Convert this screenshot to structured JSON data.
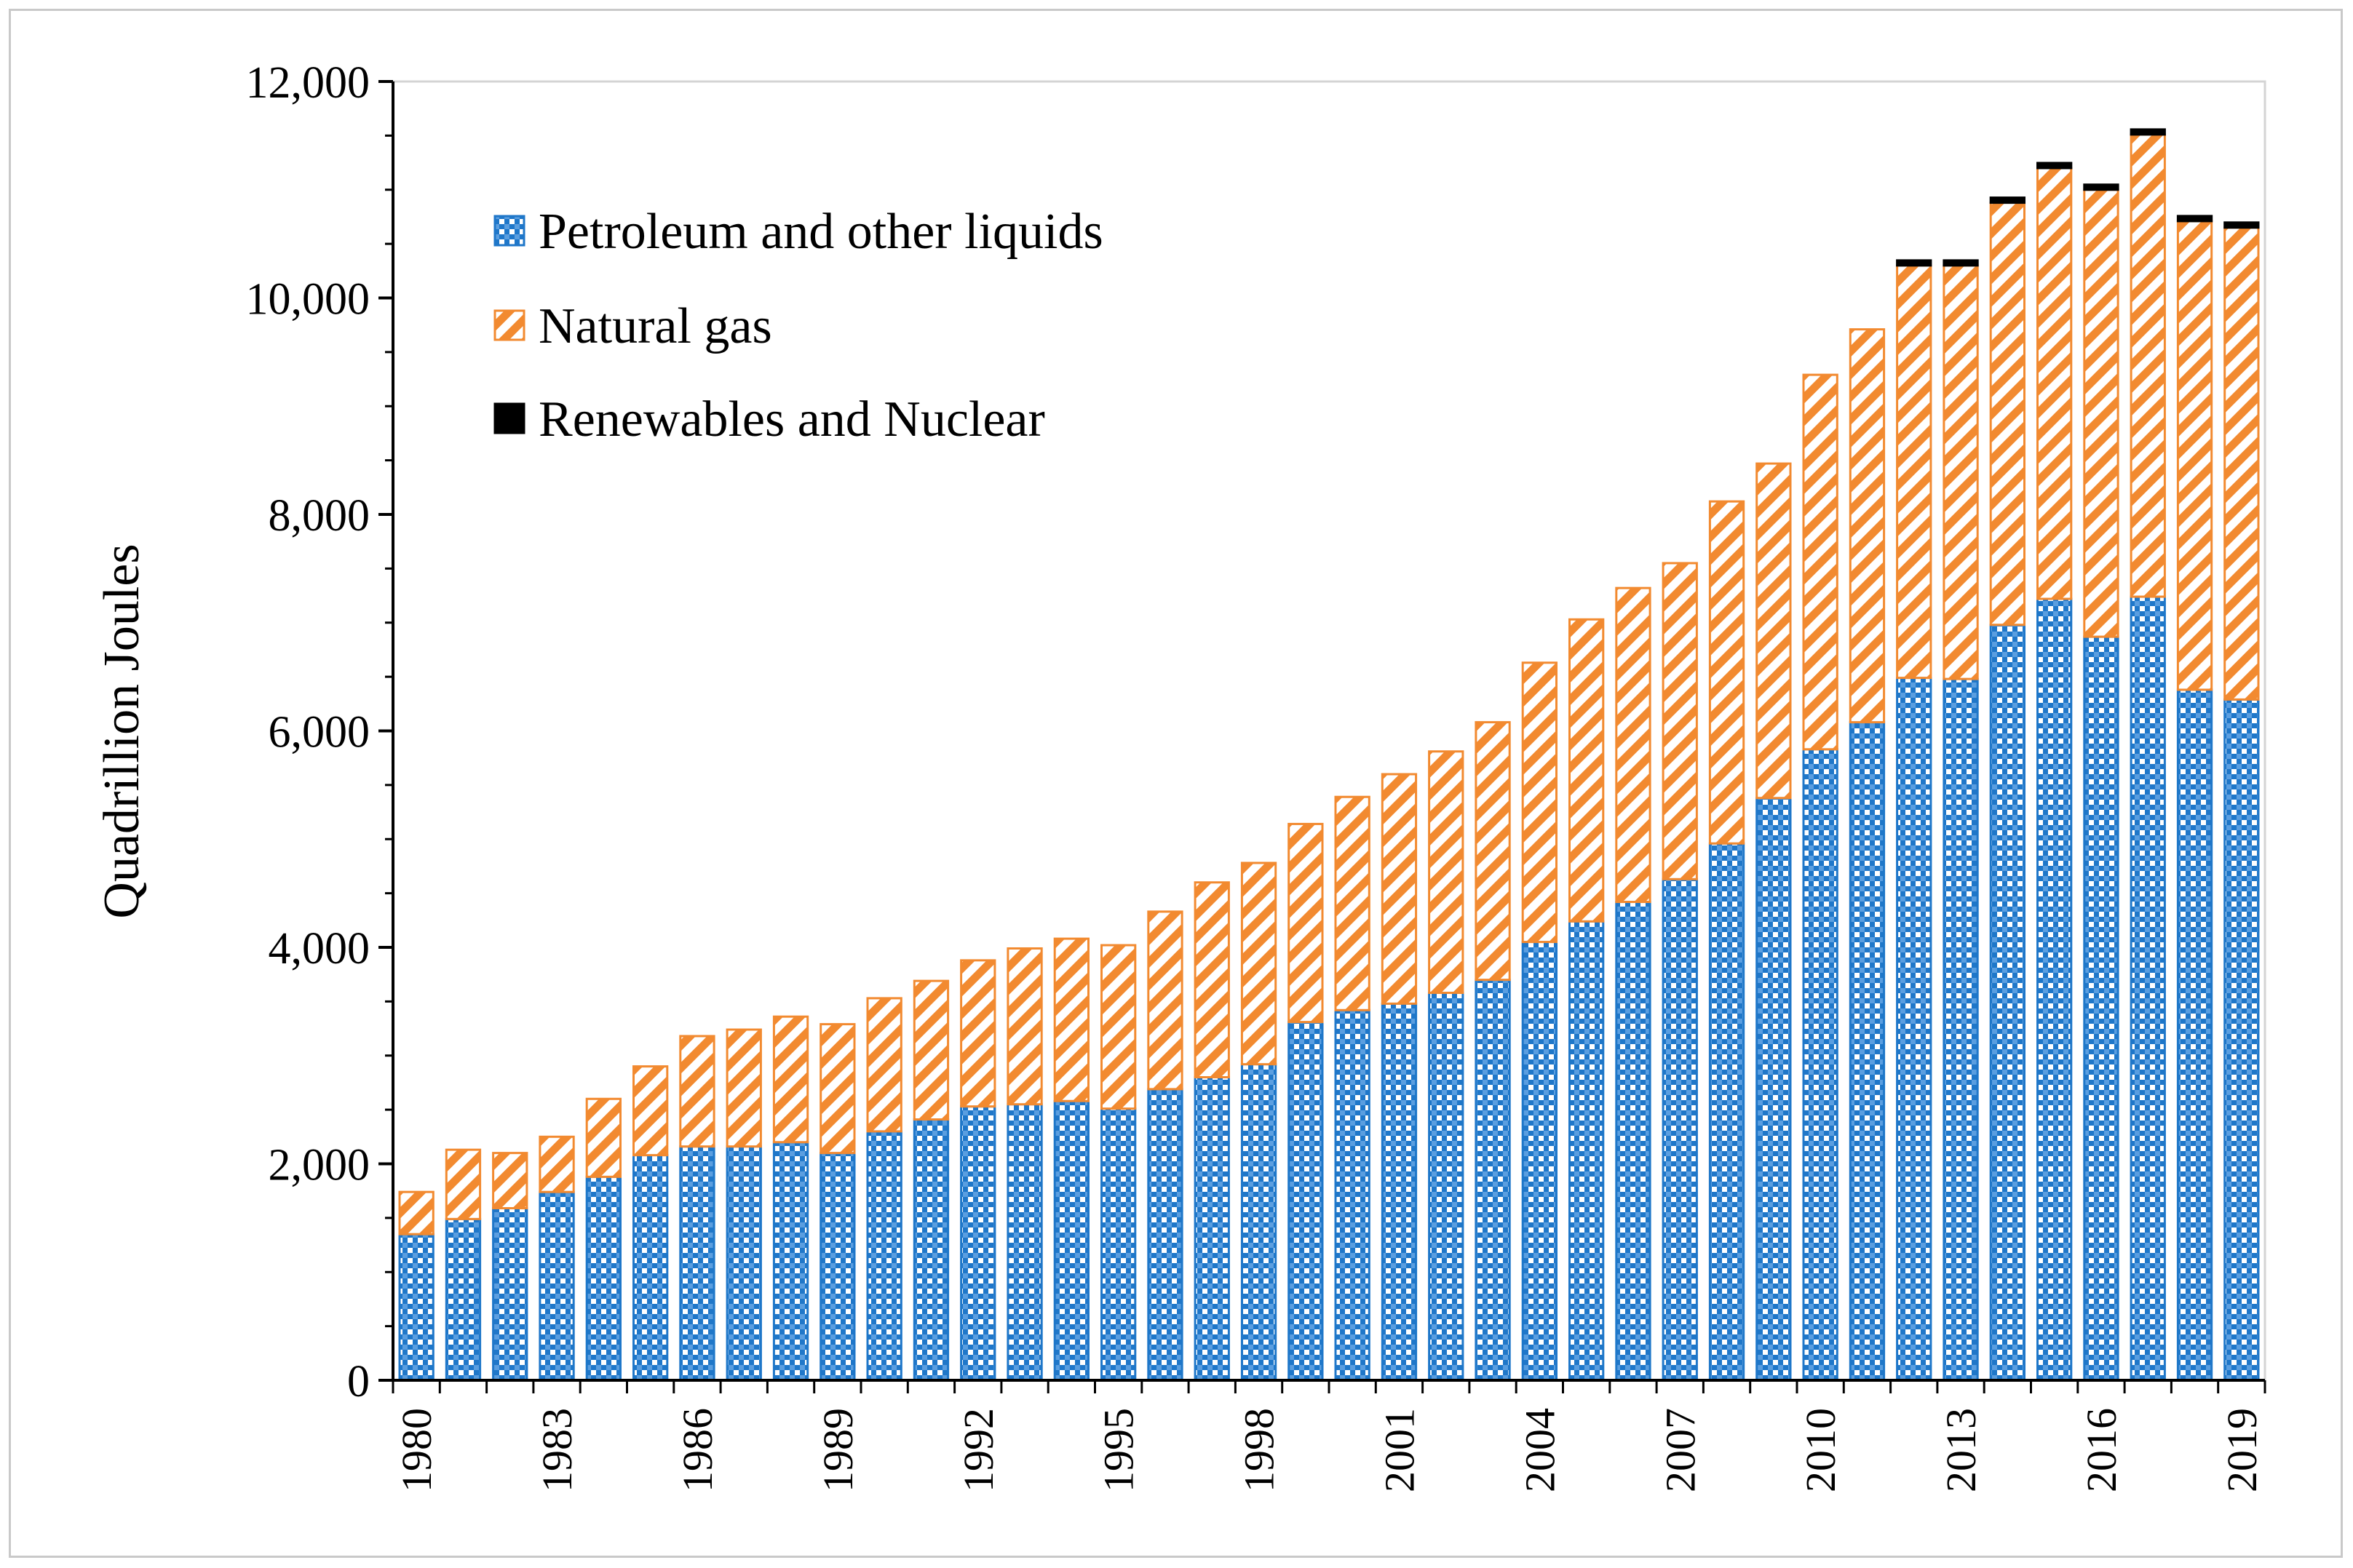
{
  "chart_data": {
    "type": "bar",
    "stacked": true,
    "title": "",
    "xlabel": "",
    "ylabel": "Quadrillion Joules",
    "ylim": [
      0,
      12000
    ],
    "y_ticks": [
      0,
      2000,
      4000,
      6000,
      8000,
      10000,
      12000
    ],
    "y_tick_labels": [
      "0",
      "2,000",
      "4,000",
      "6,000",
      "8,000",
      "10,000",
      "12,000"
    ],
    "x_tick_labels": [
      "1980",
      "1983",
      "1986",
      "1989",
      "1992",
      "1995",
      "1998",
      "2001",
      "2004",
      "2007",
      "2010",
      "2013",
      "2016",
      "2019"
    ],
    "legend_position": "top-left",
    "categories": [
      "1980",
      "1981",
      "1982",
      "1983",
      "1984",
      "1985",
      "1986",
      "1987",
      "1988",
      "1989",
      "1990",
      "1991",
      "1992",
      "1993",
      "1994",
      "1995",
      "1996",
      "1997",
      "1998",
      "1999",
      "2000",
      "2001",
      "2002",
      "2003",
      "2004",
      "2005",
      "2006",
      "2007",
      "2008",
      "2009",
      "2010",
      "2011",
      "2012",
      "2013",
      "2014",
      "2015",
      "2016",
      "2017",
      "2018",
      "2019"
    ],
    "series": [
      {
        "name": "Petroleum and other liquids",
        "color": "#1f77c9",
        "values": [
          1350,
          1490,
          1590,
          1740,
          1880,
          2080,
          2160,
          2160,
          2200,
          2100,
          2300,
          2410,
          2530,
          2550,
          2580,
          2510,
          2690,
          2800,
          2920,
          3310,
          3420,
          3480,
          3580,
          3700,
          4050,
          4240,
          4420,
          4630,
          4960,
          5380,
          5830,
          6080,
          6490,
          6480,
          6980,
          7220,
          6870,
          7240,
          6380,
          6290
        ]
      },
      {
        "name": "Natural gas",
        "color": "#f28a30",
        "values": [
          390,
          640,
          510,
          510,
          720,
          820,
          1020,
          1080,
          1160,
          1190,
          1230,
          1280,
          1350,
          1440,
          1500,
          1510,
          1640,
          1800,
          1860,
          1830,
          1970,
          2120,
          2230,
          2380,
          2580,
          2790,
          2900,
          2920,
          3160,
          3090,
          3460,
          3630,
          3810,
          3820,
          3900,
          3980,
          4130,
          4270,
          4330,
          4360
        ]
      },
      {
        "name": "Renewables and Nuclear",
        "color": "#000000",
        "values": [
          0,
          0,
          0,
          0,
          0,
          0,
          0,
          0,
          0,
          0,
          0,
          0,
          0,
          0,
          0,
          0,
          0,
          0,
          0,
          0,
          0,
          0,
          0,
          0,
          0,
          0,
          0,
          0,
          0,
          0,
          0,
          0,
          30,
          30,
          30,
          30,
          30,
          30,
          30,
          30
        ]
      }
    ]
  }
}
